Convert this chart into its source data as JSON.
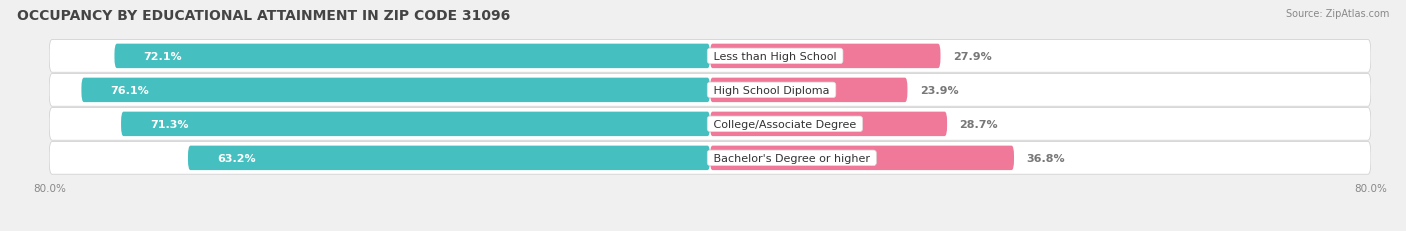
{
  "title": "OCCUPANCY BY EDUCATIONAL ATTAINMENT IN ZIP CODE 31096",
  "source": "Source: ZipAtlas.com",
  "categories": [
    "Less than High School",
    "High School Diploma",
    "College/Associate Degree",
    "Bachelor's Degree or higher"
  ],
  "owner_values": [
    72.1,
    76.1,
    71.3,
    63.2
  ],
  "renter_values": [
    27.9,
    23.9,
    28.7,
    36.8
  ],
  "owner_color": "#45BFBF",
  "renter_color": "#F07898",
  "x_min": 0.0,
  "x_max": 100.0,
  "background_color": "#f0f0f0",
  "bar_bg_color": "#e0e0e0",
  "row_bg_color": "#e8e8e8",
  "title_fontsize": 10,
  "label_fontsize": 8,
  "value_fontsize": 8,
  "bar_height": 0.72,
  "divider_pct": 72.1
}
